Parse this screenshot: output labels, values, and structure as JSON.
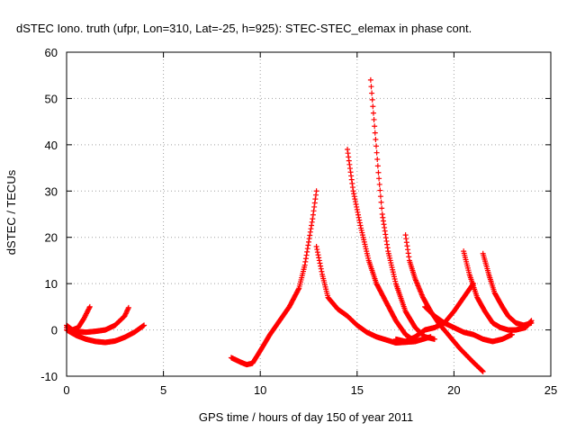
{
  "chart_data": {
    "type": "scatter",
    "title": "dSTEC Iono. truth (ufpr, Lon=310, Lat=-25, h=925): STEC-STEC_elemax in phase cont.",
    "xlabel": "GPS time / hours of day 150 of year 2011",
    "ylabel": "dSTEC  / TECUs",
    "xlim": [
      0,
      25
    ],
    "ylim": [
      -10,
      60
    ],
    "x_ticks": [
      "0",
      "5",
      "10",
      "15",
      "20",
      "25"
    ],
    "y_ticks": [
      "-10",
      "0",
      "10",
      "20",
      "30",
      "40",
      "50",
      "60"
    ],
    "grid": true,
    "marker": "+",
    "color": "#ff0000",
    "series": [
      {
        "x": [
          0.0,
          0.3,
          0.6,
          0.9,
          1.2
        ],
        "y": [
          1.0,
          0.0,
          0.5,
          2.5,
          5.0
        ]
      },
      {
        "x": [
          0.0,
          0.5,
          1.0,
          1.5,
          2.0,
          2.5,
          3.0,
          3.2
        ],
        "y": [
          0.5,
          -0.3,
          -0.5,
          -0.3,
          0.0,
          1.0,
          3.0,
          4.8
        ]
      },
      {
        "x": [
          0.0,
          0.5,
          1.0,
          1.5,
          2.0,
          2.5,
          3.0,
          3.5,
          4.0
        ],
        "y": [
          0.0,
          -1.2,
          -2.0,
          -2.5,
          -2.7,
          -2.4,
          -1.6,
          -0.5,
          1.0
        ]
      },
      {
        "x": [
          8.5,
          9.0,
          9.3,
          9.6,
          10.0,
          10.5,
          11.0,
          11.5,
          12.0,
          12.3,
          12.5,
          12.7,
          12.9
        ],
        "y": [
          -6.0,
          -7.0,
          -7.5,
          -7.2,
          -4.5,
          -1.0,
          2.0,
          5.0,
          9.0,
          14.0,
          19.0,
          24.0,
          30.0
        ]
      },
      {
        "x": [
          12.9,
          13.2,
          13.5,
          14.0,
          14.5,
          15.0,
          15.5,
          16.0,
          17.0,
          18.0,
          18.8
        ],
        "y": [
          18.0,
          12.0,
          7.0,
          4.5,
          3.0,
          1.0,
          -0.5,
          -1.5,
          -2.8,
          -2.5,
          -1.5
        ]
      },
      {
        "x": [
          14.5,
          14.8,
          15.2,
          15.6,
          16.0,
          16.5,
          17.0,
          17.5,
          18.0
        ],
        "y": [
          39.0,
          30.0,
          22.0,
          15.0,
          10.0,
          6.0,
          2.0,
          -1.0,
          -2.5
        ]
      },
      {
        "x": [
          15.7,
          15.9,
          16.1,
          16.3,
          16.6,
          17.0,
          17.5,
          18.0,
          18.5,
          19.0
        ],
        "y": [
          54.0,
          44.0,
          34.0,
          25.0,
          17.0,
          10.0,
          4.0,
          0.5,
          -1.5,
          -2.0
        ]
      },
      {
        "x": [
          17.5,
          17.7,
          18.0,
          18.4,
          18.8,
          19.2,
          19.7,
          20.3,
          21.0,
          21.5
        ],
        "y": [
          20.5,
          15.0,
          11.0,
          7.0,
          4.0,
          1.5,
          -1.0,
          -4.0,
          -7.0,
          -9.0
        ]
      },
      {
        "x": [
          20.5,
          20.8,
          21.2,
          21.6,
          22.0,
          22.4,
          22.8,
          23.2,
          23.7,
          24.0
        ],
        "y": [
          17.0,
          12.0,
          7.0,
          4.0,
          1.5,
          0.5,
          0.0,
          0.0,
          0.5,
          2.0
        ]
      },
      {
        "x": [
          21.5,
          21.8,
          22.1,
          22.5,
          22.8,
          23.2,
          23.6,
          24.0
        ],
        "y": [
          16.5,
          12.0,
          8.0,
          5.0,
          3.0,
          1.5,
          1.0,
          1.5
        ]
      },
      {
        "x": [
          17.0,
          17.5,
          18.0,
          18.5,
          19.0,
          19.5,
          20.0,
          20.5,
          21.0
        ],
        "y": [
          -2.0,
          -2.5,
          -1.5,
          0.0,
          0.5,
          1.5,
          4.0,
          7.0,
          10.0
        ]
      },
      {
        "x": [
          18.5,
          19.0,
          19.5,
          20.0,
          20.5,
          21.0,
          21.5,
          22.0,
          22.5,
          23.0
        ],
        "y": [
          5.0,
          3.0,
          1.5,
          0.5,
          -0.5,
          -1.0,
          -2.0,
          -2.5,
          -2.0,
          -1.0
        ]
      }
    ]
  }
}
